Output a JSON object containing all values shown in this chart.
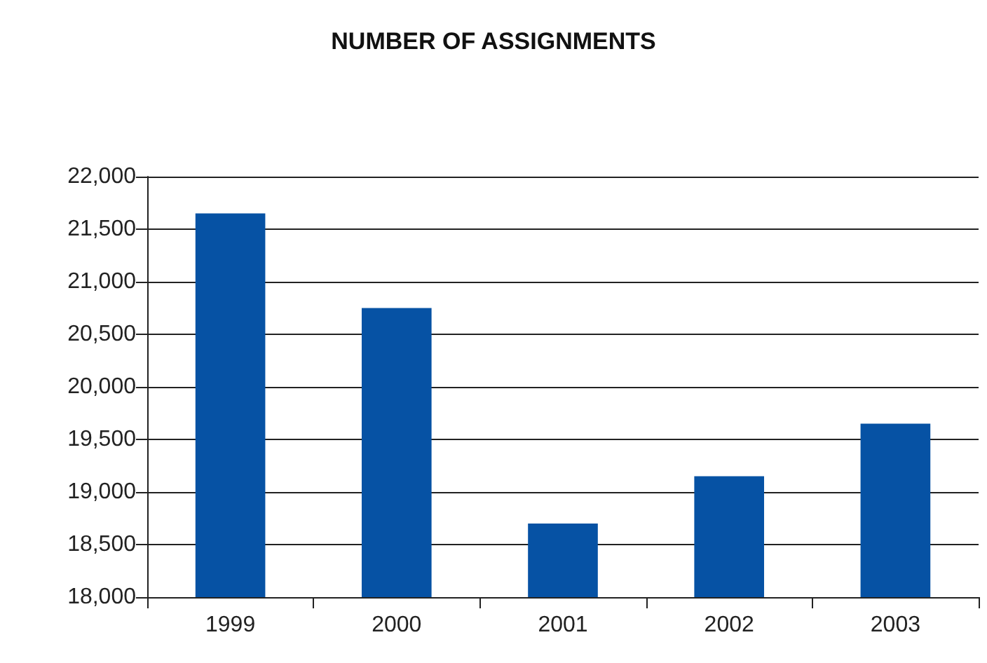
{
  "chart_data": {
    "type": "bar",
    "title": "NUMBER OF ASSIGNMENTS",
    "categories": [
      "1999",
      "2000",
      "2001",
      "2002",
      "2003"
    ],
    "values": [
      21650,
      20750,
      18700,
      19150,
      19650
    ],
    "color": "#0652a4",
    "ylim": [
      18000,
      22000
    ],
    "yticks": [
      {
        "value": 18000,
        "label": "18,000"
      },
      {
        "value": 18500,
        "label": "18,500"
      },
      {
        "value": 19000,
        "label": "19,000"
      },
      {
        "value": 19500,
        "label": "19,500"
      },
      {
        "value": 20000,
        "label": "20,000"
      },
      {
        "value": 20500,
        "label": "20,500"
      },
      {
        "value": 21000,
        "label": "21,000"
      },
      {
        "value": 21500,
        "label": "21,500"
      },
      {
        "value": 22000,
        "label": "22,000"
      }
    ],
    "grid": "y"
  }
}
